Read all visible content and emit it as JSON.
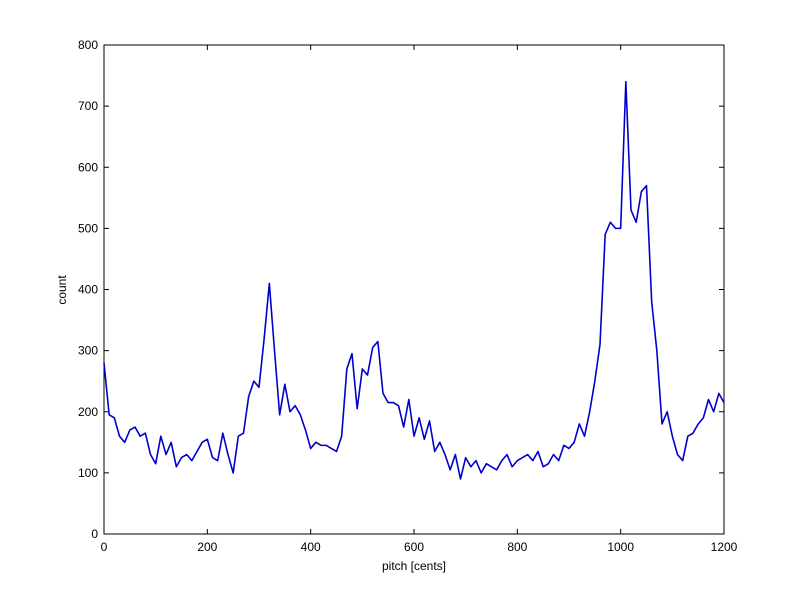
{
  "chart_data": {
    "type": "line",
    "xlabel": "pitch [cents]",
    "ylabel": "count",
    "x": [
      0,
      10,
      20,
      30,
      40,
      50,
      60,
      70,
      80,
      90,
      100,
      110,
      120,
      130,
      140,
      150,
      160,
      170,
      180,
      190,
      200,
      210,
      220,
      230,
      240,
      250,
      260,
      270,
      280,
      290,
      300,
      310,
      320,
      330,
      340,
      350,
      360,
      370,
      380,
      390,
      400,
      410,
      420,
      430,
      440,
      450,
      460,
      470,
      480,
      490,
      500,
      510,
      520,
      530,
      540,
      550,
      560,
      570,
      580,
      590,
      600,
      610,
      620,
      630,
      640,
      650,
      660,
      670,
      680,
      690,
      700,
      710,
      720,
      730,
      740,
      750,
      760,
      770,
      780,
      790,
      800,
      810,
      820,
      830,
      840,
      850,
      860,
      870,
      880,
      890,
      900,
      910,
      920,
      930,
      940,
      950,
      960,
      970,
      980,
      990,
      1000,
      1010,
      1020,
      1030,
      1040,
      1050,
      1060,
      1070,
      1080,
      1090,
      1100,
      1110,
      1120,
      1130,
      1140,
      1150,
      1160,
      1170,
      1180,
      1190,
      1200
    ],
    "series": [
      {
        "name": "count",
        "color": "#0000cc",
        "values": [
          280,
          195,
          190,
          160,
          150,
          170,
          175,
          160,
          165,
          130,
          115,
          160,
          130,
          150,
          110,
          125,
          130,
          120,
          135,
          150,
          155,
          125,
          120,
          165,
          130,
          100,
          160,
          165,
          225,
          250,
          240,
          320,
          410,
          300,
          195,
          245,
          200,
          210,
          195,
          170,
          140,
          150,
          145,
          145,
          140,
          135,
          160,
          270,
          295,
          205,
          270,
          260,
          305,
          315,
          230,
          215,
          215,
          210,
          175,
          220,
          160,
          190,
          155,
          185,
          135,
          150,
          130,
          105,
          130,
          90,
          125,
          110,
          120,
          100,
          115,
          110,
          105,
          120,
          130,
          110,
          120,
          125,
          130,
          120,
          135,
          110,
          115,
          130,
          120,
          145,
          140,
          150,
          180,
          160,
          200,
          250,
          310,
          490,
          510,
          500,
          500,
          740,
          530,
          510,
          560,
          570,
          380,
          300,
          180,
          200,
          160,
          130,
          120,
          160,
          165,
          180,
          190,
          220,
          200,
          230,
          215
        ]
      }
    ],
    "xlim": [
      0,
      1200
    ],
    "xticks": [
      0,
      200,
      400,
      600,
      800,
      1000,
      1200
    ],
    "ylim": [
      0,
      800
    ],
    "yticks": [
      0,
      100,
      200,
      300,
      400,
      500,
      600,
      700,
      800
    ],
    "grid": false
  }
}
